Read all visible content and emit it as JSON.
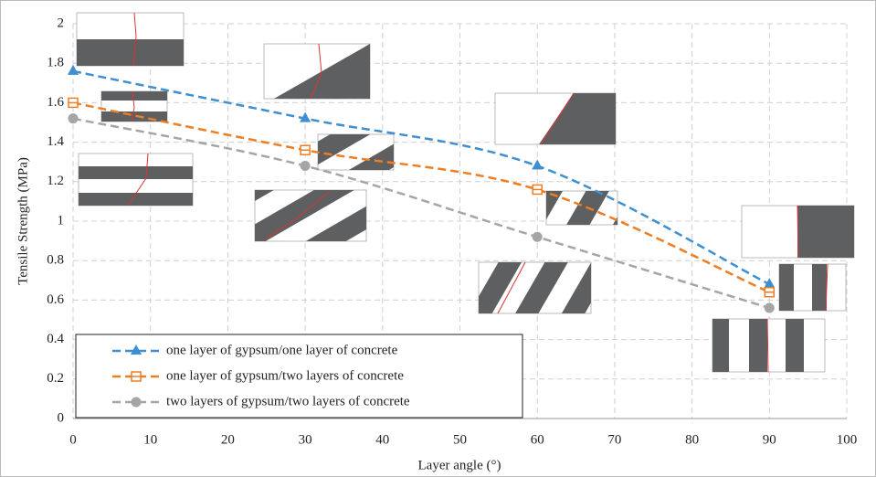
{
  "chart_data": {
    "type": "line",
    "xlabel": "Layer angle (°)",
    "ylabel": "Tensile Strength (MPa)",
    "x": [
      0,
      30,
      60,
      90
    ],
    "series": [
      {
        "name": "one layer of gypsum/one layer of concrete",
        "color": "#3d8fd1",
        "marker": "triangle",
        "values": [
          1.76,
          1.52,
          1.28,
          0.68
        ]
      },
      {
        "name": "one layer of gypsum/two layers of concrete",
        "color": "#ef7d22",
        "marker": "square",
        "values": [
          1.6,
          1.36,
          1.16,
          0.64
        ]
      },
      {
        "name": "two layers of gypsum/two layers of concrete",
        "color": "#a5a5a5",
        "marker": "circle",
        "values": [
          1.52,
          1.28,
          0.92,
          0.56
        ]
      }
    ],
    "xlim": [
      0,
      100
    ],
    "xticks": [
      0,
      10,
      20,
      30,
      40,
      50,
      60,
      70,
      80,
      90,
      100
    ],
    "ylim": [
      0,
      2
    ],
    "yticks": [
      0,
      0.2,
      0.4,
      0.6,
      0.8,
      1,
      1.2,
      1.4,
      1.6,
      1.8,
      2
    ],
    "grid": true,
    "legend": "lower left"
  }
}
